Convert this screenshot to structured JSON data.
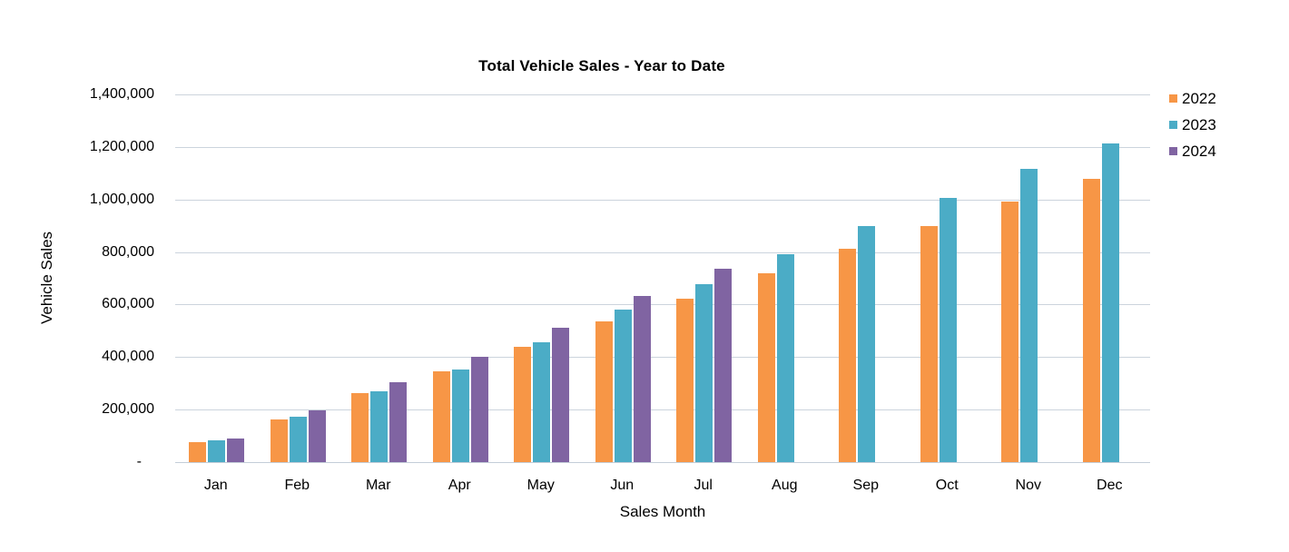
{
  "chart_data": {
    "type": "bar",
    "title": "Total Vehicle Sales - Year to Date",
    "xlabel": "Sales Month",
    "ylabel": "Vehicle Sales",
    "categories": [
      "Jan",
      "Feb",
      "Mar",
      "Apr",
      "May",
      "Jun",
      "Jul",
      "Aug",
      "Sep",
      "Oct",
      "Nov",
      "Dec"
    ],
    "series": [
      {
        "name": "2022",
        "color": "#F79646",
        "values": [
          75000,
          163000,
          262000,
          345000,
          439000,
          535000,
          621000,
          718000,
          814000,
          900000,
          992000,
          1080000
        ]
      },
      {
        "name": "2023",
        "color": "#4BACC6",
        "values": [
          84000,
          174000,
          271000,
          351000,
          458000,
          580000,
          677000,
          790000,
          900000,
          1007000,
          1118000,
          1214000
        ]
      },
      {
        "name": "2024",
        "color": "#8064A2",
        "values": [
          91000,
          196000,
          304000,
          402000,
          511000,
          632000,
          735000,
          null,
          null,
          null,
          null,
          null
        ]
      }
    ],
    "ylim": [
      0,
      1400000
    ],
    "ytick_interval": 200000,
    "ytick_labels": [
      "-",
      "200,000",
      "400,000",
      "600,000",
      "800,000",
      "1,000,000",
      "1,200,000",
      "1,400,000"
    ],
    "zero_tick_label": "-",
    "grid": "horizontal",
    "legend_position": "top-right"
  }
}
